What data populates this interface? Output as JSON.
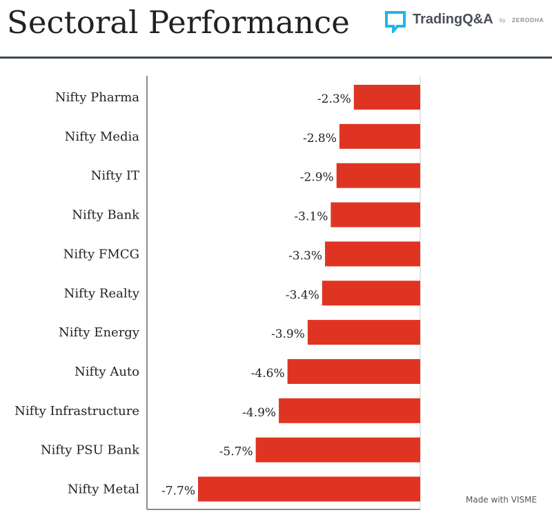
{
  "header": {
    "title": "Sectoral Performance",
    "brand_name": "TradingQ&A",
    "brand_by": "by",
    "brand_maker": "ZERODHA",
    "brand_icon": "tradingqa-logo-icon"
  },
  "footer": {
    "watermark": "Made with VISME"
  },
  "colors": {
    "bar": "#e03423",
    "axis": "#666666",
    "grid": "#cccccc",
    "title": "#222222",
    "header_rule": "#3b4656",
    "brand_accent": "#1fb6e8"
  },
  "chart_data": {
    "type": "bar",
    "orientation": "horizontal",
    "title": "",
    "xlabel": "",
    "ylabel": "",
    "value_suffix": "%",
    "xlim": [
      -8,
      0
    ],
    "grid": false,
    "categories": [
      "Nifty Pharma",
      "Nifty Media",
      "Nifty IT",
      "Nifty Bank",
      "Nifty FMCG",
      "Nifty Realty",
      "Nifty Energy",
      "Nifty Auto",
      "Nifty Infrastructure",
      "Nifty PSU Bank",
      "Nifty Metal"
    ],
    "values": [
      -2.3,
      -2.8,
      -2.9,
      -3.1,
      -3.3,
      -3.4,
      -3.9,
      -4.6,
      -4.9,
      -5.7,
      -7.7
    ],
    "data_labels": [
      "-2.3%",
      "-2.8%",
      "-2.9%",
      "-3.1%",
      "-3.3%",
      "-3.4%",
      "-3.9%",
      "-4.6%",
      "-4.9%",
      "-5.7%",
      "-7.7%"
    ]
  }
}
